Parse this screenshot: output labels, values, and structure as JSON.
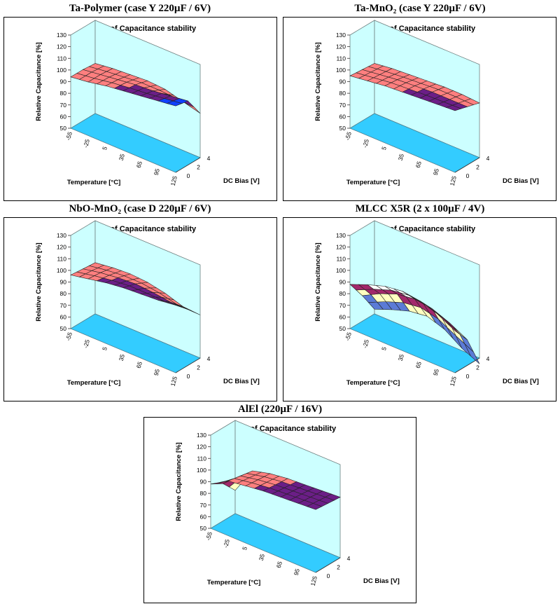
{
  "figure": {
    "captions": [
      "Ta-Polymer (case Y 220µF / 6V)",
      "Ta-MnO₂ (case Y 220µF / 6V)",
      "NbO-MnO₂ (case D 220µF / 6V)",
      "MLCC X5R (2 x 100µF / 4V)",
      "AlEl (220µF / 16V)"
    ]
  },
  "chart_data": [
    {
      "type": "surface",
      "title": "Graph of Capacitance stability",
      "xlabel": "Temperature [°C]",
      "ylabel": "DC Bias [V]",
      "zlabel": "Relative Capacitance [%]",
      "x": [
        -55,
        -25,
        5,
        35,
        65,
        95,
        125
      ],
      "y": [
        0,
        2,
        4
      ],
      "zlim": [
        50,
        130
      ],
      "zticks": [
        50,
        60,
        70,
        80,
        90,
        100,
        110,
        120,
        130
      ],
      "values": [
        [
          94,
          96,
          99,
          101,
          103,
          105,
          107
        ],
        [
          94,
          96,
          98,
          100,
          101,
          103,
          105
        ],
        [
          93,
          95,
          96,
          97,
          96,
          92,
          88
        ]
      ],
      "band_colors": [
        "#5b7bd6",
        "#ffffc0",
        "#a2286b",
        "#ff7f7f",
        "#6b1e87",
        "#1040ff"
      ]
    },
    {
      "type": "surface",
      "title": "Graph of Capacitance stability",
      "xlabel": "Temperature [°C]",
      "ylabel": "DC Bias [V]",
      "zlabel": "Relative Capacitance [%]",
      "x": [
        -55,
        -25,
        5,
        35,
        65,
        95,
        125
      ],
      "y": [
        0,
        2,
        4
      ],
      "zlim": [
        50,
        130
      ],
      "zticks": [
        50,
        60,
        70,
        80,
        90,
        100,
        110,
        120,
        130
      ],
      "values": [
        [
          95,
          97,
          99,
          100,
          101,
          102,
          103
        ],
        [
          94,
          96,
          98,
          99,
          100,
          100,
          100
        ],
        [
          93,
          95,
          96,
          97,
          98,
          98,
          97
        ]
      ],
      "band_colors": [
        "#5b7bd6",
        "#ffffc0",
        "#a2286b",
        "#ff7f7f",
        "#6b1e87",
        "#1040ff"
      ]
    },
    {
      "type": "surface",
      "title": "Graph of Capacitance stability",
      "xlabel": "Temperature [°C]",
      "ylabel": "DC Bias [V]",
      "zlabel": "Relative Capacitance [%]",
      "x": [
        -55,
        -25,
        5,
        35,
        65,
        95,
        125
      ],
      "y": [
        0,
        2,
        4
      ],
      "zlim": [
        50,
        130
      ],
      "zticks": [
        50,
        60,
        70,
        80,
        90,
        100,
        110,
        120,
        130
      ],
      "values": [
        [
          96,
          99,
          102,
          104,
          105,
          106,
          108
        ],
        [
          95,
          98,
          100,
          101,
          100,
          98,
          98
        ],
        [
          94,
          96,
          97,
          96,
          93,
          88,
          87
        ]
      ],
      "band_colors": [
        "#5b7bd6",
        "#ffffc0",
        "#a2286b",
        "#ff7f7f",
        "#6b1e87",
        "#1040ff"
      ]
    },
    {
      "type": "surface",
      "title": "Graph of Capacitance stability",
      "xlabel": "Temperature [°C]",
      "ylabel": "DC Bias [V]",
      "zlabel": "Relative Capacitance [%]",
      "x": [
        -55,
        -25,
        5,
        35,
        65,
        95,
        125
      ],
      "y": [
        0,
        2,
        4
      ],
      "zlim": [
        50,
        130
      ],
      "zticks": [
        50,
        60,
        70,
        80,
        90,
        100,
        110,
        120,
        130
      ],
      "values": [
        [
          88,
          94,
          99,
          101,
          99,
          94,
          86
        ],
        [
          72,
          80,
          86,
          88,
          86,
          80,
          72
        ],
        [
          54,
          60,
          65,
          67,
          62,
          52,
          45
        ]
      ],
      "band_colors": [
        "#5b7bd6",
        "#ffffc0",
        "#a2286b",
        "#ffffff",
        "#6b1e87",
        "#1040ff"
      ]
    },
    {
      "type": "surface",
      "title": "Graph of Capacitance stability",
      "xlabel": "Temperature [°C]",
      "ylabel": "DC Bias [V]",
      "zlabel": "Relative Capacitance [%]",
      "x": [
        -55,
        -25,
        5,
        35,
        65,
        95,
        125
      ],
      "y": [
        0,
        2,
        4
      ],
      "zlim": [
        50,
        130
      ],
      "zticks": [
        50,
        60,
        70,
        80,
        90,
        100,
        110,
        120,
        130
      ],
      "values": [
        [
          88,
          97,
          99,
          101,
          102,
          103,
          104
        ],
        [
          82,
          95,
          98,
          100,
          101,
          102,
          103
        ],
        [
          70,
          93,
          97,
          99,
          100,
          101,
          102
        ]
      ],
      "band_colors": [
        "#5b7bd6",
        "#ffffc0",
        "#a2286b",
        "#ff7f7f",
        "#6b1e87",
        "#1040ff"
      ]
    }
  ]
}
